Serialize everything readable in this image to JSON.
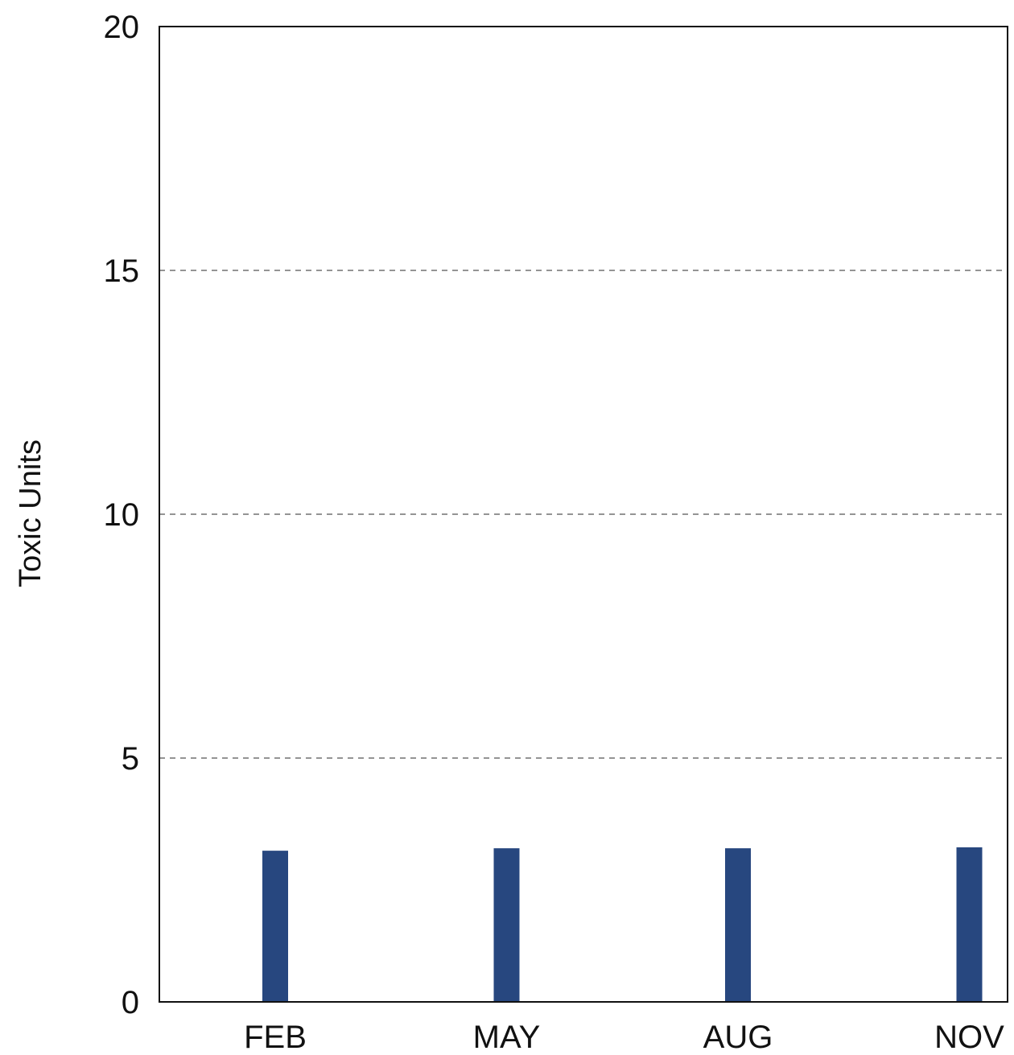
{
  "chart_data": {
    "type": "bar",
    "categories": [
      "FEB",
      "MAY",
      "AUG",
      "NOV"
    ],
    "values": [
      3.1,
      3.15,
      3.15,
      3.17
    ],
    "title": "",
    "xlabel": "",
    "ylabel": "Toxic Units",
    "ylim": [
      0,
      20
    ],
    "yticks": [
      0,
      5,
      10,
      15,
      20
    ],
    "grid": "horizontal dashed",
    "legend": "none",
    "bar_color": "#27477f"
  }
}
